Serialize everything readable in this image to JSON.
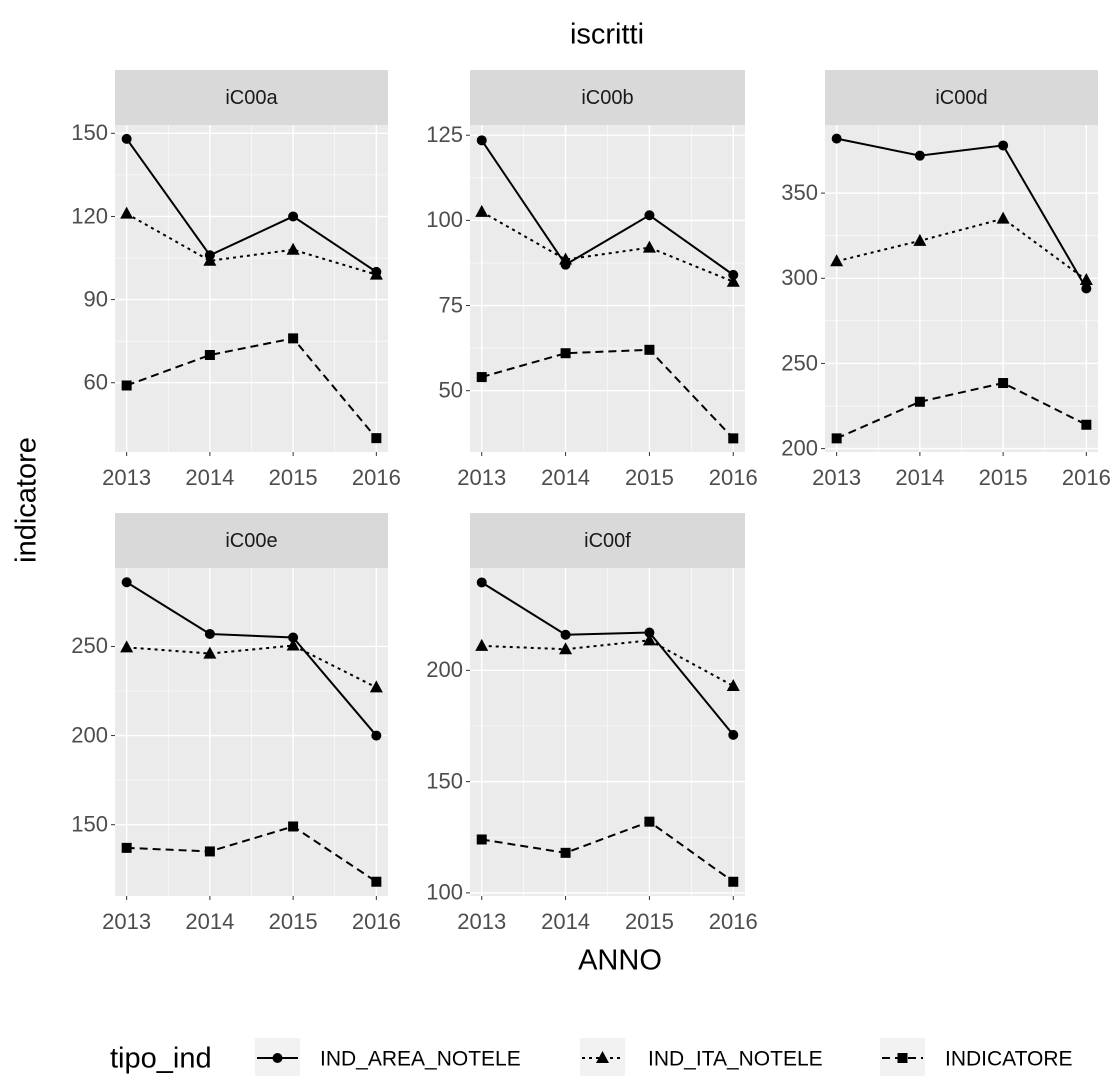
{
  "chart_data": {
    "type": "line",
    "title": "iscritti",
    "x_label": "ANNO",
    "y_label": "indicatore",
    "legend_title": "tipo_ind",
    "x": [
      2013,
      2014,
      2015,
      2016
    ],
    "xlim": [
      2012.86,
      2016.14
    ],
    "xticks": [
      2013,
      2014,
      2015,
      2016
    ],
    "grid": true,
    "series": [
      {
        "name": "IND_AREA_NOTELE",
        "color": "#000000",
        "marker": "circle",
        "linestyle": "solid"
      },
      {
        "name": "IND_ITA_NOTELE",
        "color": "#000000",
        "marker": "triangle",
        "linestyle": "dotted"
      },
      {
        "name": "INDICATORE",
        "color": "#000000",
        "marker": "square",
        "linestyle": "dashed"
      }
    ],
    "panels": [
      {
        "title": "iC00a",
        "ylim": [
          35,
          153
        ],
        "yticks": [
          60,
          90,
          120,
          150
        ],
        "series": [
          {
            "values": [
              148,
              106,
              120,
              100
            ]
          },
          {
            "values": [
              121,
              104,
              108,
              99
            ]
          },
          {
            "values": [
              59,
              70,
              76,
              40
            ]
          }
        ]
      },
      {
        "title": "iC00b",
        "ylim": [
          32,
          128
        ],
        "yticks": [
          50,
          75,
          100,
          125
        ],
        "series": [
          {
            "values": [
              123.5,
              87,
              101.5,
              84
            ]
          },
          {
            "values": [
              102.5,
              88.5,
              92,
              82
            ]
          },
          {
            "values": [
              54,
              61,
              62,
              36
            ]
          }
        ]
      },
      {
        "title": "iC00d",
        "ylim": [
          198,
          390
        ],
        "yticks": [
          200,
          250,
          300,
          350
        ],
        "series": [
          {
            "values": [
              382,
              372,
              378,
              294
            ]
          },
          {
            "values": [
              310,
              322,
              335,
              299
            ]
          },
          {
            "values": [
              206,
              227.5,
              238.5,
              214
            ]
          }
        ]
      },
      {
        "title": "iC00e",
        "ylim": [
          110,
          294
        ],
        "yticks": [
          150,
          200,
          250
        ],
        "series": [
          {
            "values": [
              286,
              257,
              255,
              200
            ]
          },
          {
            "values": [
              249.5,
              246,
              250.5,
              227
            ]
          },
          {
            "values": [
              137,
              135,
              149,
              118
            ]
          }
        ]
      },
      {
        "title": "iC00f",
        "ylim": [
          98.6,
          246
        ],
        "yticks": [
          100,
          150,
          200
        ],
        "series": [
          {
            "values": [
              239.5,
              216,
              217,
              171
            ]
          },
          {
            "values": [
              211,
              209.5,
              213.5,
              193
            ]
          },
          {
            "values": [
              124,
              118,
              132,
              105
            ]
          }
        ]
      }
    ]
  }
}
